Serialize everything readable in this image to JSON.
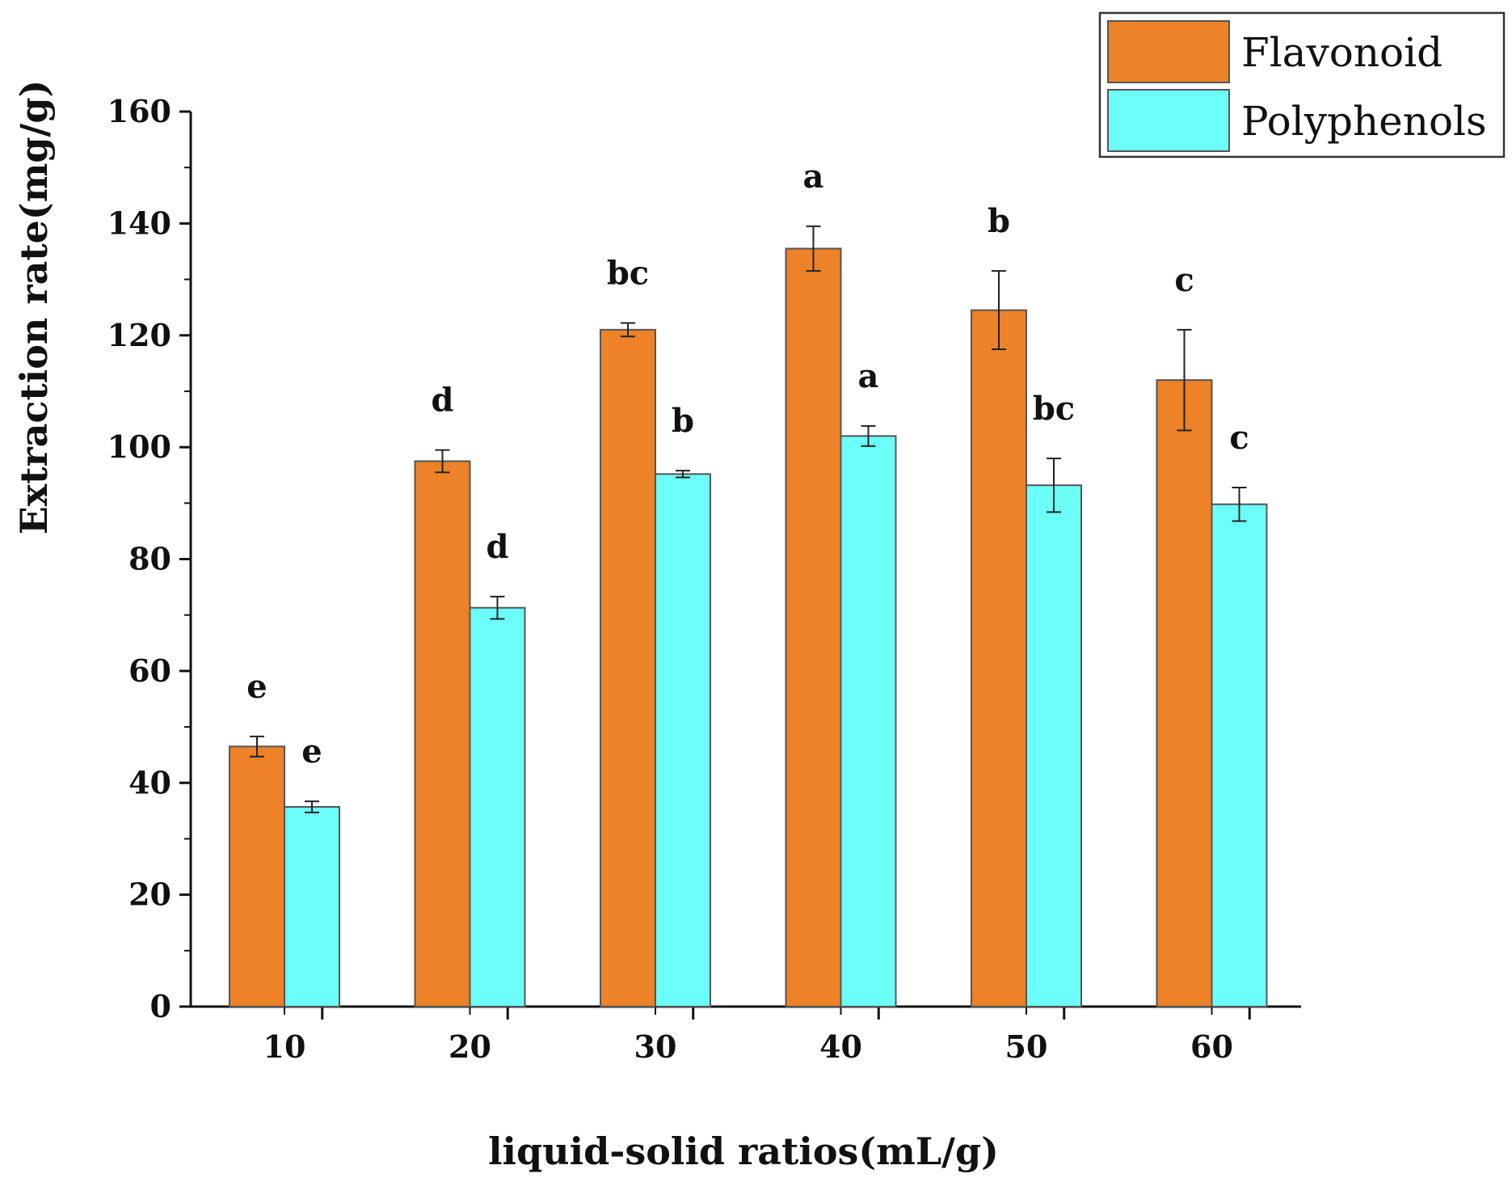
{
  "chart_data": {
    "type": "bar",
    "xlabel": "liquid-solid ratios(mL/g)",
    "ylabel": "Extraction rate(mg/g)",
    "ylim": [
      0,
      160
    ],
    "yticks": [
      "0",
      "20",
      "40",
      "60",
      "80",
      "100",
      "120",
      "140",
      "160"
    ],
    "categories": [
      "10",
      "20",
      "30",
      "40",
      "50",
      "60"
    ],
    "legend_position": "top-right",
    "series": [
      {
        "name": "Flavonoid",
        "color": "#ED8228",
        "values": [
          46.5,
          97.5,
          121,
          135.5,
          124.5,
          112
        ],
        "errors": [
          1.8,
          2.0,
          1.2,
          4.0,
          7.0,
          9.0
        ],
        "letters": [
          "e",
          "d",
          "bc",
          "a",
          "b",
          "c"
        ]
      },
      {
        "name": "Polyphenols",
        "color": "#6CFFFA",
        "values": [
          35.7,
          71.3,
          95.2,
          102.0,
          93.2,
          89.8
        ],
        "errors": [
          1.0,
          2.0,
          0.6,
          1.8,
          4.8,
          3.0
        ],
        "letters": [
          "e",
          "d",
          "b",
          "a",
          "bc",
          "c"
        ]
      }
    ]
  }
}
